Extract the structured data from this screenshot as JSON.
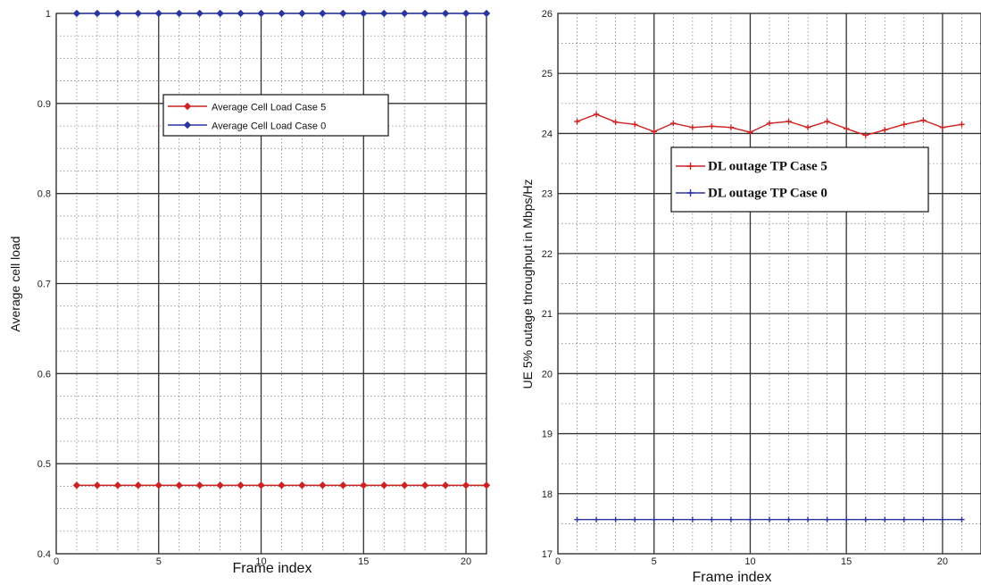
{
  "chart_data": [
    {
      "type": "line",
      "xlabel": "Frame index",
      "ylabel": "Average cell load",
      "xlim": [
        0,
        21
      ],
      "ylim": [
        0.4,
        1.0
      ],
      "xticks": [
        0,
        5,
        10,
        15,
        20
      ],
      "yticks": [
        0.4,
        0.5,
        0.6,
        0.7,
        0.8,
        0.9,
        1.0
      ],
      "tick_labels_x": [
        "0",
        "5",
        "10",
        "15",
        "20"
      ],
      "tick_labels_y": [
        "0.4",
        "0.5",
        "0.6",
        "0.7",
        "0.8",
        "0.9",
        "1"
      ],
      "grid": true,
      "legend_position": "upper-center",
      "x": [
        1,
        2,
        3,
        4,
        5,
        6,
        7,
        8,
        9,
        10,
        11,
        12,
        13,
        14,
        15,
        16,
        17,
        18,
        19,
        20,
        21
      ],
      "series": [
        {
          "name": "Average Cell Load Case 5",
          "color": "#cc2222",
          "marker": "diamond",
          "values": [
            0.476,
            0.476,
            0.476,
            0.476,
            0.476,
            0.476,
            0.476,
            0.476,
            0.476,
            0.476,
            0.476,
            0.476,
            0.476,
            0.476,
            0.476,
            0.476,
            0.476,
            0.476,
            0.476,
            0.476,
            0.476
          ]
        },
        {
          "name": "Average Cell Load Case 0",
          "color": "#2a35a0",
          "marker": "diamond",
          "values": [
            1,
            1,
            1,
            1,
            1,
            1,
            1,
            1,
            1,
            1,
            1,
            1,
            1,
            1,
            1,
            1,
            1,
            1,
            1,
            1,
            1
          ]
        }
      ]
    },
    {
      "type": "line",
      "xlabel": "Frame index",
      "ylabel": "UE 5% outage throughput in Mbps/Hz",
      "xlim": [
        0,
        22
      ],
      "ylim": [
        17,
        26
      ],
      "xticks": [
        0,
        5,
        10,
        15,
        20
      ],
      "yticks": [
        17,
        18,
        19,
        20,
        21,
        22,
        23,
        24,
        25,
        26
      ],
      "tick_labels_x": [
        "0",
        "5",
        "10",
        "15",
        "20"
      ],
      "tick_labels_y": [
        "17",
        "18",
        "19",
        "20",
        "21",
        "22",
        "23",
        "24",
        "25",
        "26"
      ],
      "grid": true,
      "legend_position": "center",
      "x": [
        1,
        2,
        3,
        4,
        5,
        6,
        7,
        8,
        9,
        10,
        11,
        12,
        13,
        14,
        15,
        16,
        17,
        18,
        19,
        20,
        21
      ],
      "series": [
        {
          "name": "DL outage TP Case 5",
          "color": "#cc2222",
          "marker": "plus",
          "values": [
            24.2,
            24.32,
            24.19,
            24.15,
            24.03,
            24.17,
            24.1,
            24.12,
            24.1,
            24.02,
            24.17,
            24.2,
            24.1,
            24.2,
            24.08,
            23.97,
            24.06,
            24.15,
            24.22,
            24.1,
            24.15
          ]
        },
        {
          "name": "DL outage TP Case 0",
          "color": "#2a35a0",
          "marker": "plus",
          "values": [
            17.57,
            17.57,
            17.57,
            17.57,
            17.57,
            17.57,
            17.57,
            17.57,
            17.57,
            17.57,
            17.57,
            17.57,
            17.57,
            17.57,
            17.57,
            17.57,
            17.57,
            17.57,
            17.57,
            17.57,
            17.57
          ]
        }
      ]
    }
  ]
}
